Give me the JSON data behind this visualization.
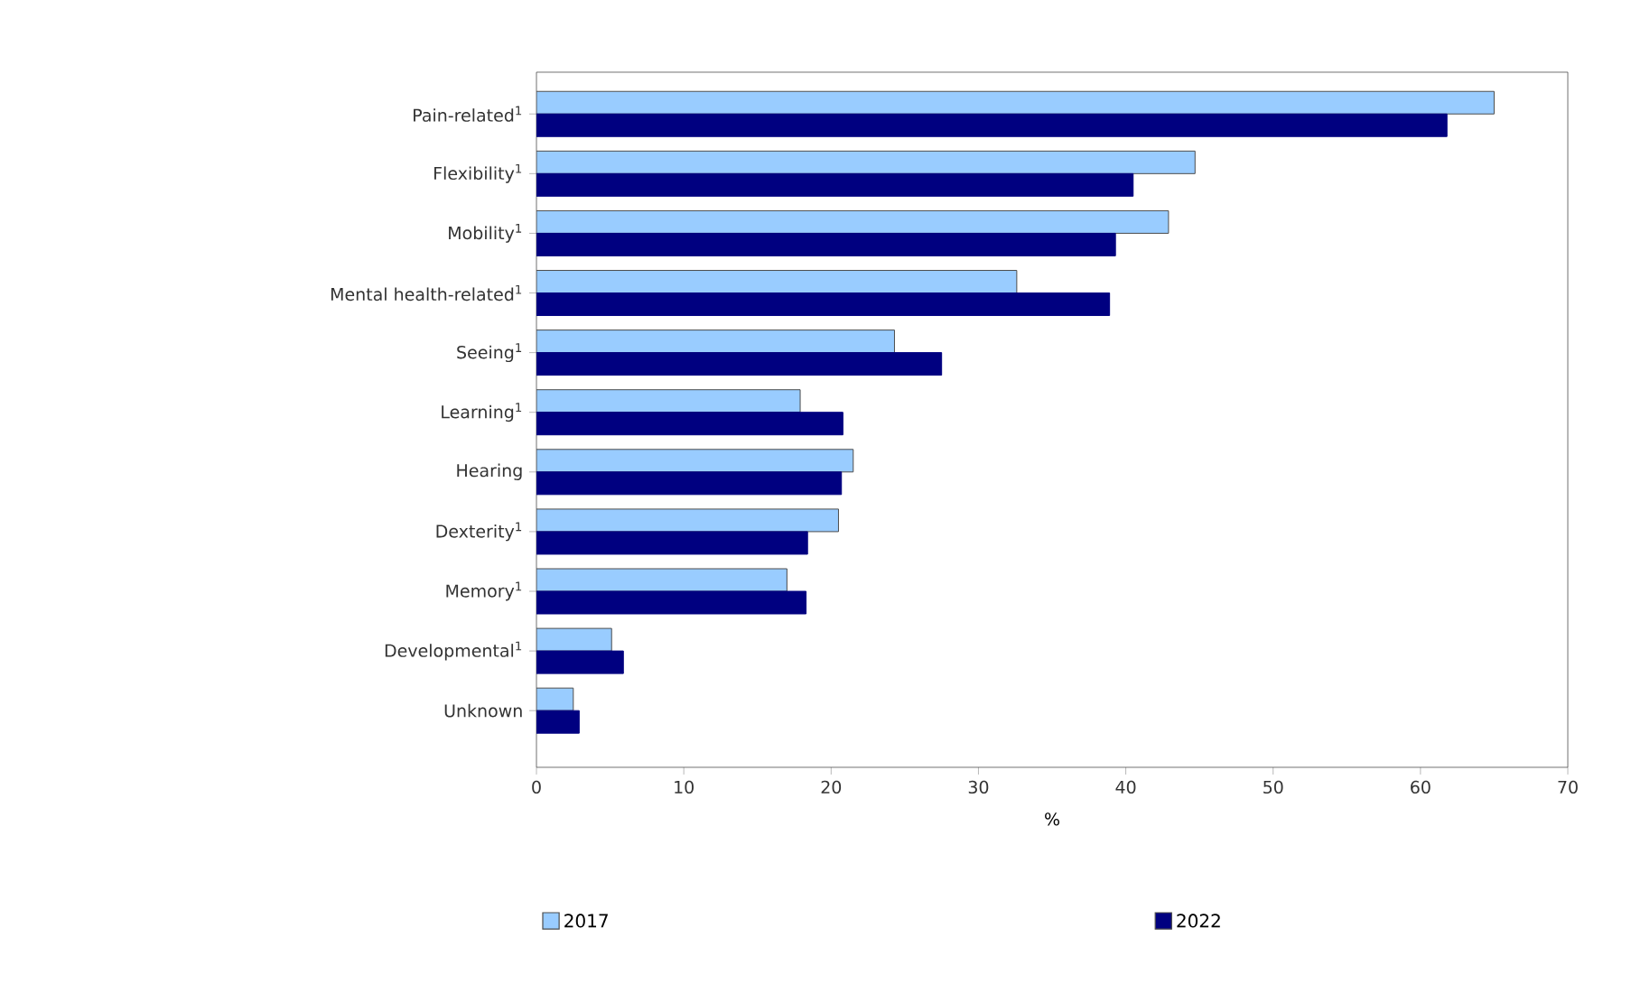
{
  "chart_data": {
    "type": "bar",
    "orientation": "horizontal",
    "xlabel": "%",
    "categories": [
      "Pain-related$^{1}$",
      "Flexibility$^{1}$",
      "Mobility$^{1}$",
      "Mental health-related$^{1}$",
      "Seeing$^{1}$",
      "Learning$^{1}$",
      "Hearing",
      "Dexterity$^{1}$",
      "Memory$^{1}$",
      "Developmental$^{1}$",
      "Unknown"
    ],
    "series": [
      {
        "name": "2017",
        "color": "#99ccff",
        "values": [
          65.0,
          44.7,
          42.9,
          32.6,
          24.3,
          17.9,
          21.5,
          20.5,
          17.0,
          5.1,
          2.5
        ]
      },
      {
        "name": "2022",
        "color": "#000080",
        "values": [
          61.8,
          40.5,
          39.3,
          38.9,
          27.5,
          20.8,
          20.7,
          18.4,
          18.3,
          5.9,
          2.9
        ]
      }
    ],
    "xlim": [
      0,
      70
    ],
    "xticks": [
      0,
      10,
      20,
      30,
      40,
      50,
      60,
      70
    ],
    "grid": false,
    "legend": "bottom"
  }
}
